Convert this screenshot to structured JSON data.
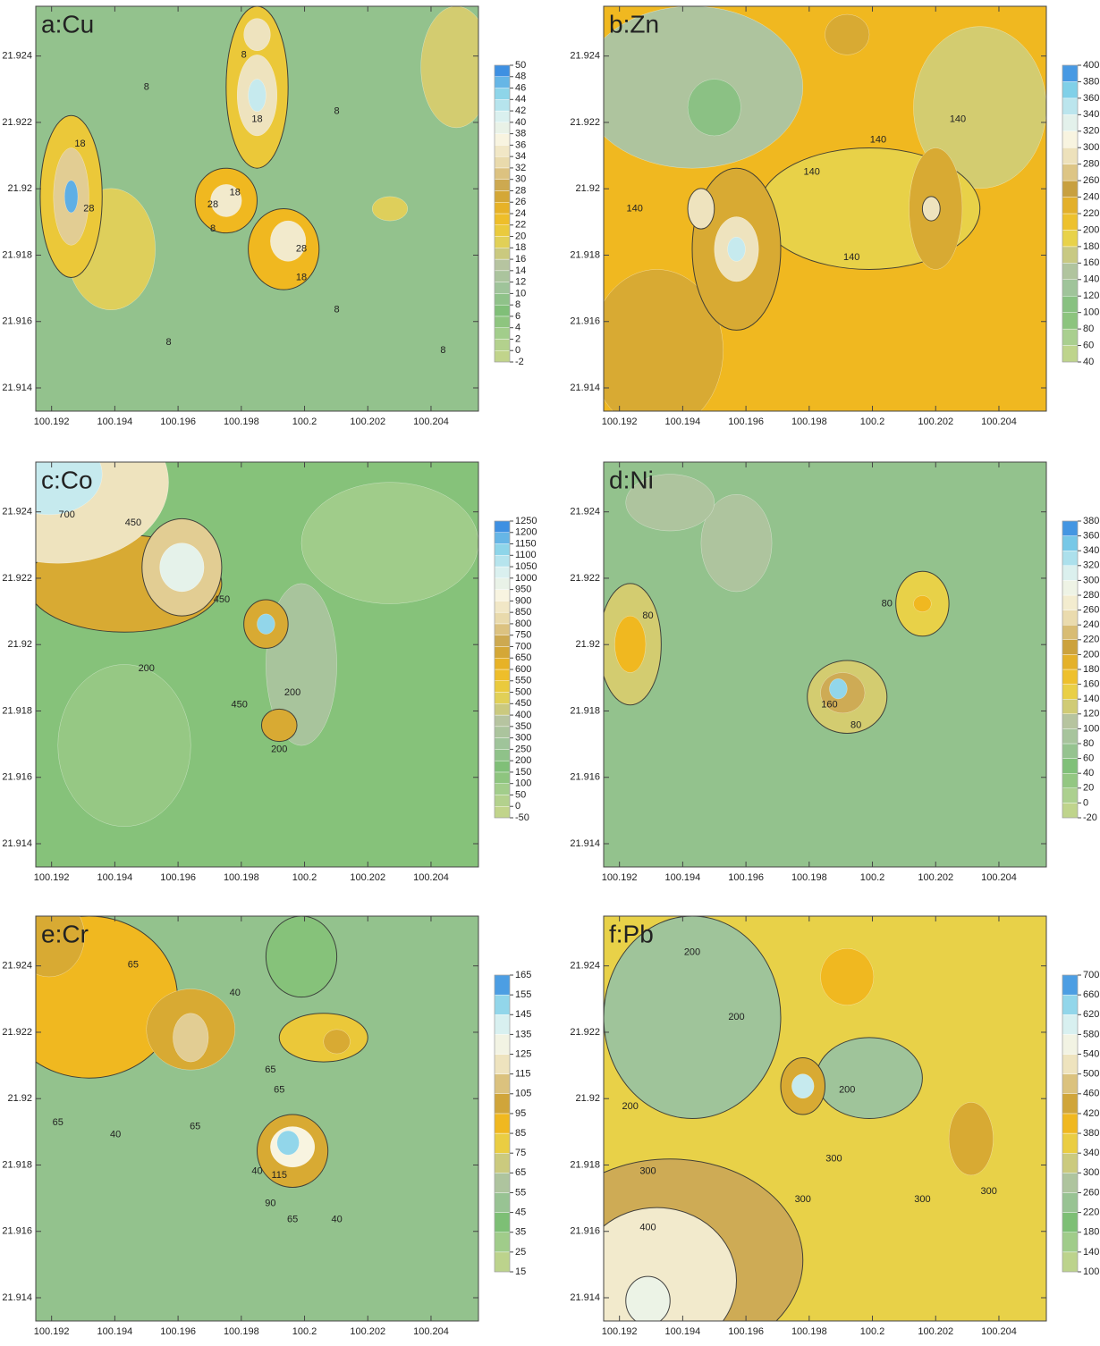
{
  "chart_data": [
    {
      "type": "contour",
      "title": "a:Cu",
      "xlim": [
        100.1915,
        100.2055
      ],
      "ylim": [
        21.9133,
        21.9255
      ],
      "xticks": [
        100.192,
        100.194,
        100.196,
        100.198,
        100.2,
        100.202,
        100.204
      ],
      "yticks": [
        21.914,
        21.916,
        21.918,
        21.92,
        21.922,
        21.924
      ],
      "levels": [
        -2,
        0,
        2,
        4,
        6,
        8,
        10,
        12,
        14,
        16,
        18,
        20,
        22,
        24,
        26,
        28,
        30,
        32,
        34,
        36,
        38,
        40,
        42,
        44,
        46,
        48,
        50
      ],
      "colormap": [
        "#c8d68a",
        "#a9cf8f",
        "#7dbf75",
        "#9fc49a",
        "#b8c4a0",
        "#e8d24a",
        "#f0b820",
        "#c8a040",
        "#e8d8a8",
        "#f8f4e0",
        "#d8f0f0",
        "#80d0e8",
        "#2a7de0"
      ],
      "contour_labels": [
        8,
        8,
        8,
        8,
        8,
        8,
        8,
        18,
        18,
        18,
        18,
        28,
        28,
        28
      ]
    },
    {
      "type": "contour",
      "title": "b:Zn",
      "xlim": [
        100.1915,
        100.2055
      ],
      "ylim": [
        21.9133,
        21.9255
      ],
      "xticks": [
        100.192,
        100.194,
        100.196,
        100.198,
        100.2,
        100.202,
        100.204
      ],
      "yticks": [
        21.914,
        21.916,
        21.918,
        21.92,
        21.922,
        21.924
      ],
      "levels": [
        40,
        60,
        80,
        100,
        120,
        140,
        160,
        180,
        200,
        220,
        240,
        260,
        280,
        300,
        320,
        340,
        360,
        380,
        400
      ],
      "colormap": [
        "#c8d68a",
        "#a9cf8f",
        "#7dbf75",
        "#9fc49a",
        "#b8c4a0",
        "#e8d24a",
        "#f0b820",
        "#c8a040",
        "#e8d8a8",
        "#f8f4e0",
        "#d8f0f0",
        "#80d0e8",
        "#2a7de0"
      ],
      "contour_labels": [
        140,
        140,
        140,
        140,
        140
      ]
    },
    {
      "type": "contour",
      "title": "c:Co",
      "xlim": [
        100.1915,
        100.2055
      ],
      "ylim": [
        21.9133,
        21.9255
      ],
      "xticks": [
        100.192,
        100.194,
        100.196,
        100.198,
        100.2,
        100.202,
        100.204
      ],
      "yticks": [
        21.914,
        21.916,
        21.918,
        21.92,
        21.922,
        21.924
      ],
      "levels": [
        -50,
        0,
        50,
        100,
        150,
        200,
        250,
        300,
        350,
        400,
        450,
        500,
        550,
        600,
        650,
        700,
        750,
        800,
        850,
        900,
        950,
        1000,
        1050,
        1100,
        1150,
        1200,
        1250
      ],
      "colormap": [
        "#c8d68a",
        "#a9cf8f",
        "#7dbf75",
        "#9fc49a",
        "#b8c4a0",
        "#e8d24a",
        "#f0b820",
        "#c8a040",
        "#e8d8a8",
        "#f8f4e0",
        "#d8f0f0",
        "#80d0e8",
        "#2a7de0"
      ],
      "contour_labels": [
        700,
        450,
        450,
        450,
        200,
        200,
        200
      ]
    },
    {
      "type": "contour",
      "title": "d:Ni",
      "xlim": [
        100.1915,
        100.2055
      ],
      "ylim": [
        21.9133,
        21.9255
      ],
      "xticks": [
        100.192,
        100.194,
        100.196,
        100.198,
        100.2,
        100.202,
        100.204
      ],
      "yticks": [
        21.914,
        21.916,
        21.918,
        21.92,
        21.922,
        21.924
      ],
      "levels": [
        -20,
        0,
        20,
        40,
        60,
        80,
        100,
        120,
        140,
        160,
        180,
        200,
        220,
        240,
        260,
        280,
        300,
        320,
        340,
        360,
        380
      ],
      "colormap": [
        "#c8d68a",
        "#a9cf8f",
        "#7dbf75",
        "#9fc49a",
        "#b8c4a0",
        "#e8d24a",
        "#f0b820",
        "#c8a040",
        "#e8d8a8",
        "#f8f4e0",
        "#d8f0f0",
        "#80d0e8",
        "#2a7de0"
      ],
      "contour_labels": [
        80,
        80,
        80,
        160
      ]
    },
    {
      "type": "contour",
      "title": "e:Cr",
      "xlim": [
        100.1915,
        100.2055
      ],
      "ylim": [
        21.9133,
        21.9255
      ],
      "xticks": [
        100.192,
        100.194,
        100.196,
        100.198,
        100.2,
        100.202,
        100.204
      ],
      "yticks": [
        21.914,
        21.916,
        21.918,
        21.92,
        21.922,
        21.924
      ],
      "levels": [
        15,
        25,
        35,
        45,
        55,
        65,
        75,
        85,
        95,
        105,
        115,
        125,
        135,
        145,
        155,
        165
      ],
      "colormap": [
        "#c8d68a",
        "#a9cf8f",
        "#7dbf75",
        "#9fc49a",
        "#b8c4a0",
        "#e8d24a",
        "#f0b820",
        "#c8a040",
        "#e8d8a8",
        "#f8f4e0",
        "#d8f0f0",
        "#80d0e8",
        "#2a7de0"
      ],
      "contour_labels": [
        65,
        65,
        65,
        65,
        65,
        40,
        40,
        40,
        40,
        115,
        90,
        65
      ]
    },
    {
      "type": "contour",
      "title": "f:Pb",
      "xlim": [
        100.1915,
        100.2055
      ],
      "ylim": [
        21.9133,
        21.9255
      ],
      "xticks": [
        100.192,
        100.194,
        100.196,
        100.198,
        100.2,
        100.202,
        100.204
      ],
      "yticks": [
        21.914,
        21.916,
        21.918,
        21.92,
        21.922,
        21.924
      ],
      "levels": [
        100,
        140,
        180,
        220,
        260,
        300,
        340,
        380,
        420,
        460,
        500,
        540,
        580,
        620,
        660,
        700
      ],
      "colormap": [
        "#c8d68a",
        "#a9cf8f",
        "#7dbf75",
        "#9fc49a",
        "#b8c4a0",
        "#e8d24a",
        "#f0b820",
        "#c8a040",
        "#e8d8a8",
        "#f8f4e0",
        "#d8f0f0",
        "#80d0e8",
        "#2a7de0"
      ],
      "contour_labels": [
        200,
        200,
        200,
        200,
        300,
        300,
        300,
        300,
        300,
        400
      ]
    }
  ]
}
